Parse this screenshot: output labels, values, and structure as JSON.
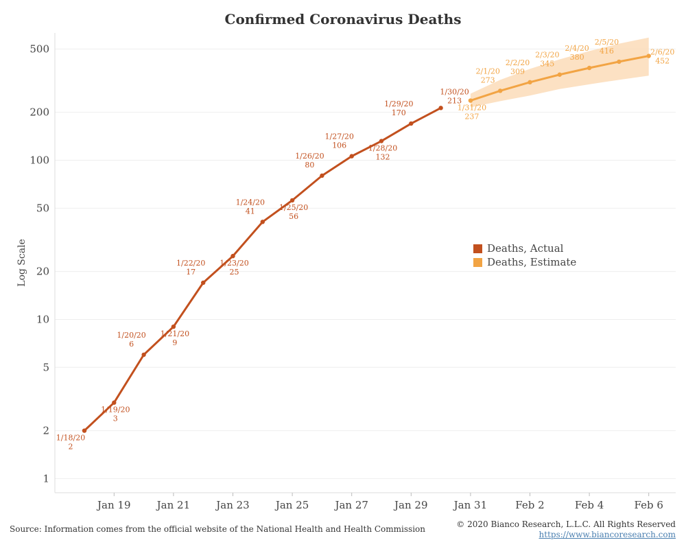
{
  "chart_data": {
    "type": "line",
    "title": "Confirmed Coronavirus Deaths",
    "ylabel": "Log Scale",
    "xlabel": "",
    "yscale": "log",
    "ylim": [
      0.9,
      600
    ],
    "xlim": [
      "2020-01-17",
      "2020-02-06"
    ],
    "yticks": [
      1,
      2,
      5,
      10,
      20,
      50,
      100,
      200,
      500
    ],
    "ytick_labels": [
      "1",
      "2",
      "5",
      "10",
      "20",
      "50",
      "100",
      "200",
      "500"
    ],
    "xticks": [
      "2020-01-19",
      "2020-01-21",
      "2020-01-23",
      "2020-01-25",
      "2020-01-27",
      "2020-01-29",
      "2020-01-31",
      "2020-02-02",
      "2020-02-04",
      "2020-02-06"
    ],
    "xtick_labels": [
      "Jan 19",
      "Jan 21",
      "Jan 23",
      "Jan 25",
      "Jan 27",
      "Jan 29",
      "Jan 31",
      "Feb 2",
      "Feb 4",
      "Feb 6"
    ],
    "grid": true,
    "legend_position": "center-right",
    "series": [
      {
        "name": "Deaths, Actual",
        "color": "#c2501e",
        "x": [
          "2020-01-18",
          "2020-01-19",
          "2020-01-20",
          "2020-01-21",
          "2020-01-22",
          "2020-01-23",
          "2020-01-24",
          "2020-01-25",
          "2020-01-26",
          "2020-01-27",
          "2020-01-28",
          "2020-01-29",
          "2020-01-30"
        ],
        "values": [
          2,
          3,
          6,
          9,
          17,
          25,
          41,
          56,
          80,
          106,
          132,
          170,
          213
        ],
        "labels": [
          "1/18/20",
          "1/19/20",
          "1/20/20",
          "1/21/20",
          "1/22/20",
          "1/23/20",
          "1/24/20",
          "1/25/20",
          "1/26/20",
          "1/27/20",
          "1/28/20",
          "1/29/20",
          "1/30/20"
        ],
        "label_position": [
          "left",
          "below",
          "above",
          "below",
          "above",
          "below",
          "above",
          "below",
          "above",
          "above",
          "below",
          "above",
          "above"
        ]
      },
      {
        "name": "Deaths, Estimate",
        "color": "#f2a444",
        "band_color": "#fbdcb8",
        "x": [
          "2020-01-31",
          "2020-02-01",
          "2020-02-02",
          "2020-02-03",
          "2020-02-04",
          "2020-02-05",
          "2020-02-06"
        ],
        "values": [
          237,
          273,
          309,
          345,
          380,
          416,
          452
        ],
        "labels": [
          "1/31/20",
          "2/1/20",
          "2/2/20",
          "2/3/20",
          "2/4/20",
          "2/5/20",
          "2/6/20"
        ],
        "label_position": [
          "below",
          "above",
          "above",
          "above",
          "above",
          "above",
          "above"
        ],
        "upper": [
          262,
          320,
          375,
          430,
          485,
          540,
          590
        ],
        "lower": [
          215,
          235,
          255,
          280,
          300,
          320,
          340
        ]
      }
    ]
  },
  "footer": {
    "source": "Source: Information comes from the official website of the National Health and Health Commission",
    "copyright": "© 2020 Bianco Research, L.L.C. All Rights Reserved",
    "url": "https://www.biancoresearch.com"
  }
}
